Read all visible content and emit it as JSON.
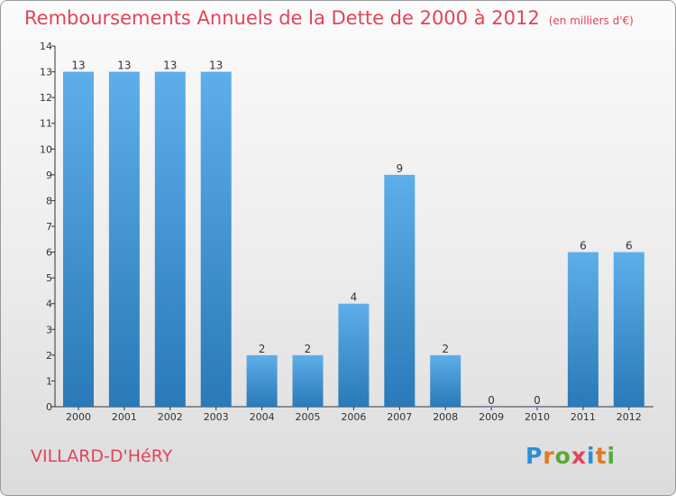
{
  "header": {
    "title": "Remboursements Annuels de la Dette de 2000 à 2012",
    "subtitle": "(en milliers d'€)"
  },
  "footer": {
    "commune": "VILLARD-D'HéRY",
    "brand": "Proxiti"
  },
  "colors": {
    "title": "#e0455a",
    "bar_top": "#5eaeea",
    "bar_bottom": "#2a79b8",
    "axis": "#333333"
  },
  "chart_data": {
    "type": "bar",
    "categories": [
      "2000",
      "2001",
      "2002",
      "2003",
      "2004",
      "2005",
      "2006",
      "2007",
      "2008",
      "2009",
      "2010",
      "2011",
      "2012"
    ],
    "values": [
      13,
      13,
      13,
      13,
      2,
      2,
      4,
      9,
      2,
      0,
      0,
      6,
      6
    ],
    "ylim": [
      0,
      14
    ],
    "yticks": [
      0,
      1,
      2,
      3,
      4,
      5,
      6,
      7,
      8,
      9,
      10,
      11,
      12,
      13,
      14
    ],
    "grid": false,
    "data_labels": true
  }
}
